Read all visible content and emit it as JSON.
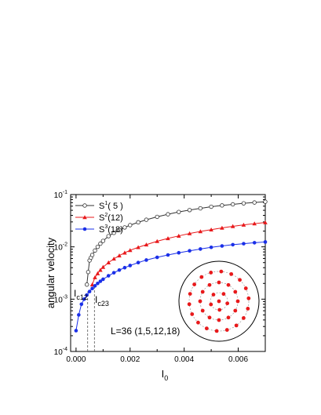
{
  "chart_data": {
    "type": "line",
    "title": "",
    "xlabel": "I",
    "xlabel_sub": "0",
    "ylabel": "angular velocity",
    "xlim": [
      -0.0002,
      0.007
    ],
    "ylim": [
      0.0001,
      0.1
    ],
    "y_scale": "log",
    "grid": false,
    "legend_position": "top-left",
    "x_ticks": [
      "0.000",
      "0.002",
      "0.004",
      "0.006"
    ],
    "y_ticks": [
      {
        "base": "10",
        "exp": "-4"
      },
      {
        "base": "10",
        "exp": "-3"
      },
      {
        "base": "10",
        "exp": "-2"
      },
      {
        "base": "10",
        "exp": "-1"
      }
    ],
    "series": [
      {
        "name": "S1(5)",
        "legend": {
          "main": "S",
          "sup": "1",
          "rest": "( 5 )"
        },
        "color": "#333333",
        "marker": "open-circle",
        "x": [
          0.0004,
          0.00045,
          0.0005,
          0.00055,
          0.0006,
          0.0007,
          0.0008,
          0.0009,
          0.001,
          0.0012,
          0.0014,
          0.0016,
          0.0018,
          0.002,
          0.0023,
          0.0026,
          0.003,
          0.0034,
          0.0038,
          0.0042,
          0.0046,
          0.005,
          0.0054,
          0.0058,
          0.0062,
          0.0066,
          0.007
        ],
        "y": [
          0.0019,
          0.0033,
          0.0055,
          0.0062,
          0.007,
          0.0085,
          0.01,
          0.0115,
          0.013,
          0.016,
          0.0185,
          0.021,
          0.0235,
          0.026,
          0.0295,
          0.033,
          0.0375,
          0.042,
          0.0465,
          0.0505,
          0.0545,
          0.0585,
          0.062,
          0.065,
          0.068,
          0.0705,
          0.073
        ]
      },
      {
        "name": "S2(12)",
        "legend": {
          "main": "S",
          "sup": "2",
          "rest": "(12)"
        },
        "color": "#e8191b",
        "marker": "filled-triangle",
        "x": [
          0.0006,
          0.0007,
          0.0008,
          0.0009,
          0.001,
          0.0012,
          0.0014,
          0.0016,
          0.0018,
          0.002,
          0.0023,
          0.0026,
          0.003,
          0.0034,
          0.0038,
          0.0042,
          0.0046,
          0.005,
          0.0054,
          0.0058,
          0.0062,
          0.0066,
          0.007
        ],
        "y": [
          0.0019,
          0.0026,
          0.0031,
          0.0036,
          0.0041,
          0.005,
          0.0059,
          0.0068,
          0.0077,
          0.0086,
          0.0098,
          0.011,
          0.0128,
          0.0145,
          0.0162,
          0.018,
          0.0197,
          0.0213,
          0.023,
          0.0247,
          0.0263,
          0.0278,
          0.0292
        ]
      },
      {
        "name": "S3(18)",
        "legend": {
          "main": "S",
          "sup": "3",
          "rest": "(18)"
        },
        "color": "#1a2fe8",
        "marker": "filled-circle",
        "x": [
          0.0,
          0.0001,
          0.0002,
          0.0003,
          0.0004,
          0.0005,
          0.0006,
          0.0007,
          0.0008,
          0.0009,
          0.001,
          0.0012,
          0.0014,
          0.0016,
          0.0018,
          0.002,
          0.0023,
          0.0026,
          0.003,
          0.0034,
          0.0038,
          0.0042,
          0.0046,
          0.005,
          0.0054,
          0.0058,
          0.0062,
          0.0066,
          0.007
        ],
        "y": [
          0.00025,
          0.0005,
          0.0008,
          0.001,
          0.0012,
          0.0014,
          0.0016,
          0.0018,
          0.002,
          0.0022,
          0.0024,
          0.0028,
          0.0032,
          0.0036,
          0.004,
          0.0044,
          0.005,
          0.0056,
          0.0063,
          0.007,
          0.0077,
          0.0084,
          0.0091,
          0.0098,
          0.0104,
          0.011,
          0.0115,
          0.012,
          0.0124
        ]
      }
    ],
    "annotations": {
      "ic12": {
        "main": "I",
        "sub": "c12",
        "x": 0.00043
      },
      "ic23": {
        "main": "I",
        "sub": "c23",
        "x": 0.00068
      },
      "config_label": "L=36  (1,5,12,18)"
    },
    "inset": {
      "description_rings": [
        1,
        5,
        12,
        18
      ],
      "dot_color": "#e8191b"
    }
  }
}
